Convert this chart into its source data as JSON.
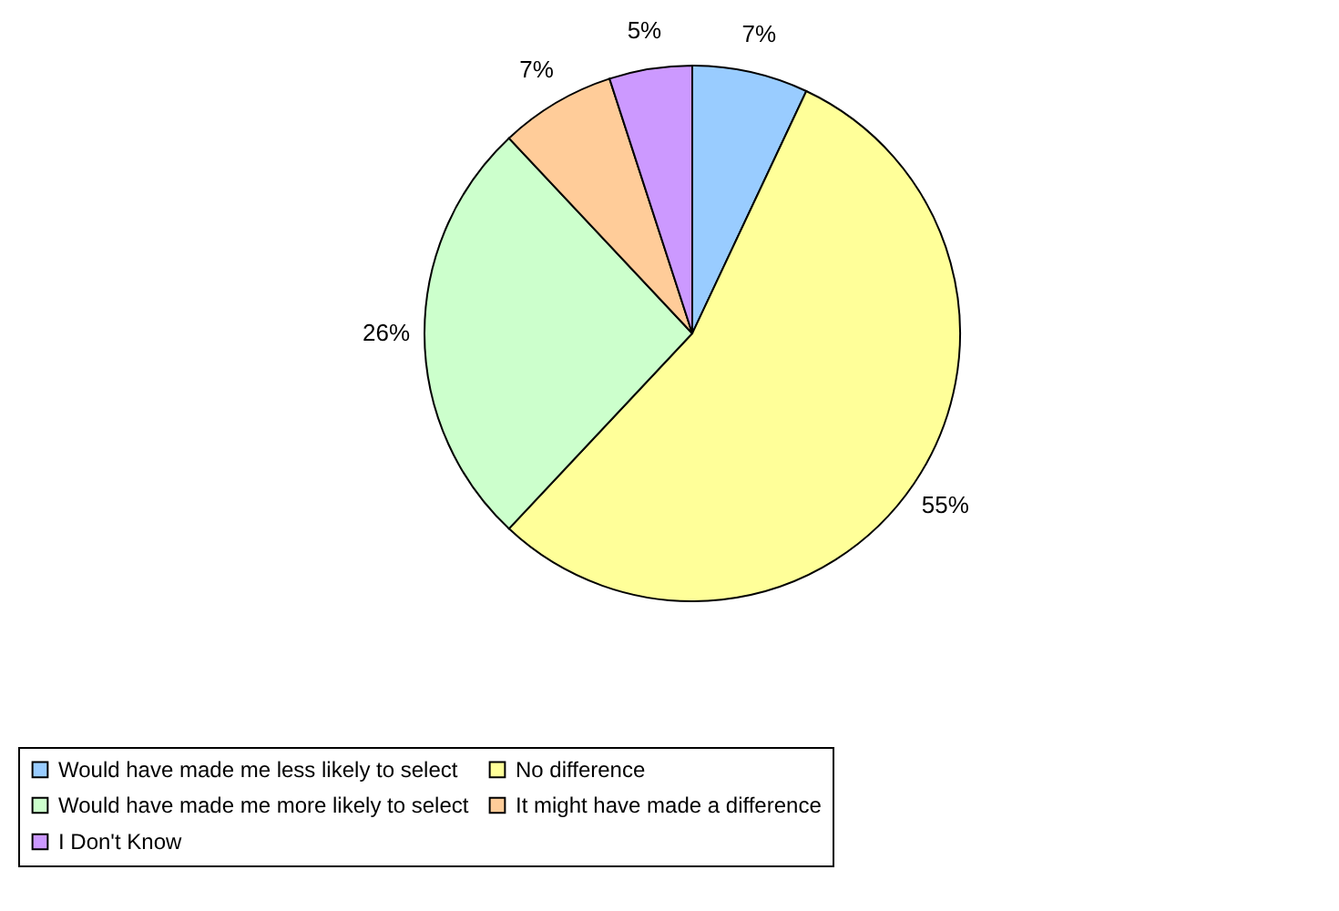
{
  "chart_data": {
    "type": "pie",
    "categories": [
      "Would have made me less likely to select",
      "No difference",
      "Would have made me more likely to select",
      "It might have made a difference",
      "I Don't Know"
    ],
    "values": [
      7,
      55,
      26,
      7,
      5
    ],
    "colors": [
      "#99ccff",
      "#ffff99",
      "#ccffcc",
      "#ffcc99",
      "#cc99ff"
    ],
    "value_labels": [
      "7%",
      "55%",
      "26%",
      "7%",
      "5%"
    ],
    "legend": "bottom"
  }
}
